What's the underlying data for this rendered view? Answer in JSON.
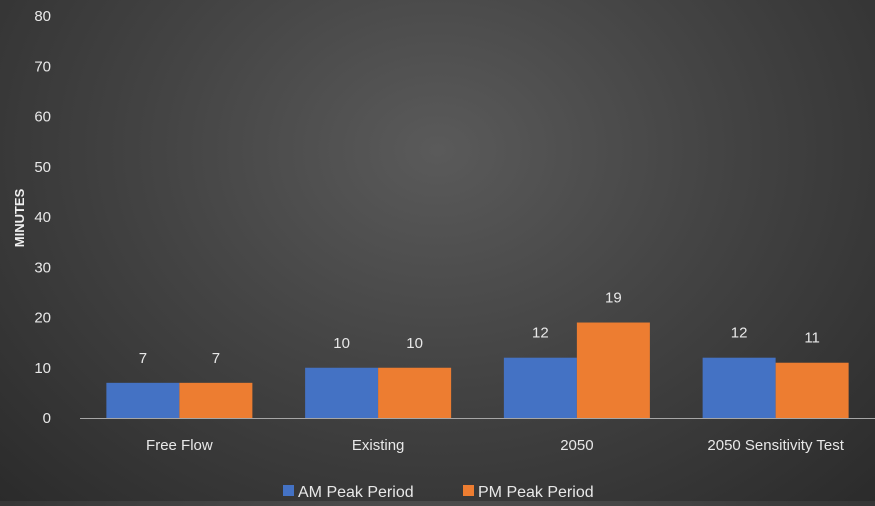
{
  "chart_data": {
    "type": "bar",
    "categories": [
      "Free Flow",
      "Existing",
      "2050",
      "2050 Sensitivity Test"
    ],
    "series": [
      {
        "name": "AM Peak Period",
        "values": [
          7,
          10,
          12,
          12
        ],
        "labels": [
          "7",
          "10",
          "12",
          "12"
        ],
        "color": "#4472c4"
      },
      {
        "name": "PM Peak Period",
        "values": [
          7,
          10,
          19,
          11
        ],
        "labels": [
          "7",
          "10",
          "19",
          "11"
        ],
        "color": "#ed7d31"
      }
    ],
    "yticks": [
      "0",
      "10",
      "20",
      "30",
      "40",
      "50",
      "60",
      "70",
      "80"
    ],
    "ylabel": "MINUTES",
    "xlabel": "",
    "ylim": [
      0,
      80
    ],
    "grid": false,
    "legend": "bottom"
  }
}
